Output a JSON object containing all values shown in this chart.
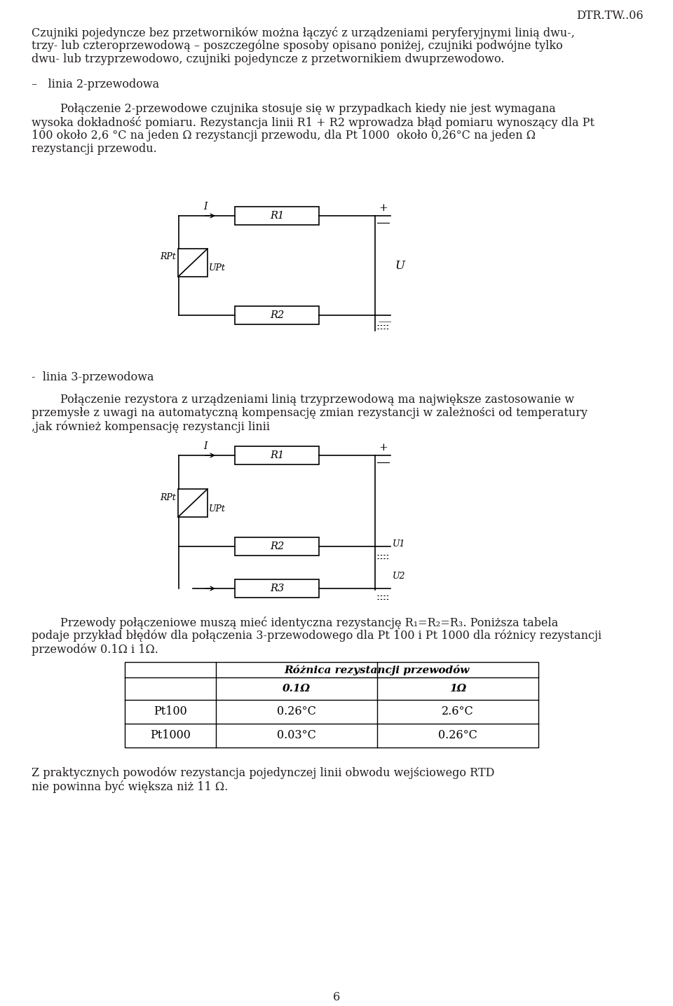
{
  "page_title": "DTR.TW..06",
  "para1_line1": "Czujniki pojedyncze bez przetworników można łączyć z urządzeniami peryferyjnymi linią dwu-,",
  "para1_line2": "trzy- lub czteroprzewodową – poszczególne sposoby opisano poniżej, czujniki podwójne tylko",
  "para1_line3": "dwu- lub trzyprzewodowo, czujniki pojedyncze z przetwornikiem dwuprzewodowo.",
  "bullet1_header": "–   linia 2-przewodowa",
  "b1t_line1": "        Połączenie 2-przewodowe czujnika stosuje się w przypadkach kiedy nie jest wymagana",
  "b1t_line2": "wysoka dokładność pomiaru. Rezystancja linii R1 + R2 wprowadza błąd pomiaru wynoszący dla Pt",
  "b1t_line3": "100 około 2,6 °C na jeden Ω rezystancji przewodu, dla Pt 1000  około 0,26°C na jeden Ω",
  "b1t_line4": "rezystancji przewodu.",
  "bullet2_header": "-  linia 3-przewodowa",
  "b2t_line1": "        Połączenie rezystora z urządzeniami linią trzyprzewodową ma największe zastosowanie w",
  "b2t_line2": "przemysłe z uwagi na automatyczną kompensację zmian rezystancji w zależności od temperatury",
  "b2t_line3": ",jak również kompensację rezystancji linii",
  "pt_line1": "        Przewody połączeniowe muszą mieć identyczna rezystancję R₁=R₂=R₃. Poniższa tabela",
  "pt_line2": "podaje przykład błędów dla połączenia 3-przewodowego dla Pt 100 i Pt 1000 dla różnicy rezystancji",
  "pt_line3": "przewodów 0.1Ω i 1Ω.",
  "table_header_main": "Różnica rezystancji przewodów",
  "table_col1": "0.1Ω",
  "table_col2": "1Ω",
  "table_row1_label": "Pt100",
  "table_row1_val1": "0.26°C",
  "table_row1_val2": "2.6°C",
  "table_row2_label": "Pt1000",
  "table_row2_val1": "0.03°C",
  "table_row2_val2": "0.26°C",
  "final_line1": "Z praktycznych powodów rezystancja pojedynczej linii obwodu wejściowego RTD",
  "final_line2": "nie powinna być większa niż 11 Ω.",
  "page_number": "6",
  "bg_color": "#ffffff",
  "text_color": "#231f20"
}
